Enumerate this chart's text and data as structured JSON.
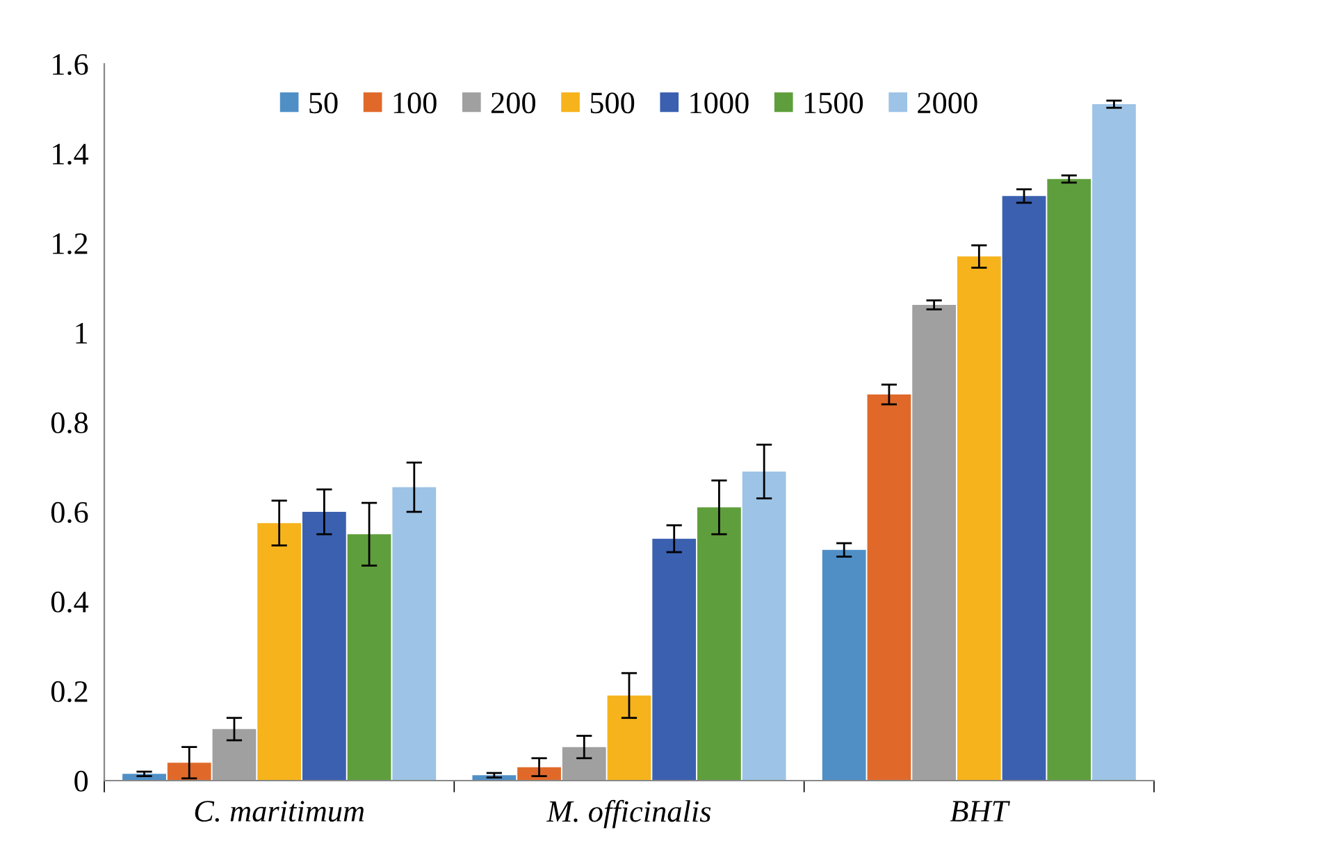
{
  "chart_data": {
    "type": "bar",
    "categories": [
      "C. maritimum",
      "M. officinalis",
      "BHT"
    ],
    "series": [
      {
        "name": "50",
        "color": "#4f8fc6",
        "values": [
          0.015,
          0.012,
          0.515
        ],
        "errors": [
          0.005,
          0.005,
          0.015
        ]
      },
      {
        "name": "100",
        "color": "#e0692a",
        "values": [
          0.04,
          0.03,
          0.862
        ],
        "errors": [
          0.035,
          0.02,
          0.022
        ]
      },
      {
        "name": "200",
        "color": "#a0a0a0",
        "values": [
          0.115,
          0.075,
          1.062
        ],
        "errors": [
          0.025,
          0.025,
          0.01
        ]
      },
      {
        "name": "500",
        "color": "#f6b31b",
        "values": [
          0.575,
          0.19,
          1.17
        ],
        "errors": [
          0.05,
          0.05,
          0.025
        ]
      },
      {
        "name": "1000",
        "color": "#3b60b0",
        "values": [
          0.6,
          0.54,
          1.305
        ],
        "errors": [
          0.05,
          0.03,
          0.015
        ]
      },
      {
        "name": "1500",
        "color": "#5f9e3c",
        "values": [
          0.55,
          0.61,
          1.343
        ],
        "errors": [
          0.07,
          0.06,
          0.008
        ]
      },
      {
        "name": "2000",
        "color": "#9dc3e6",
        "values": [
          0.655,
          0.69,
          1.51
        ],
        "errors": [
          0.055,
          0.06,
          0.008
        ]
      }
    ],
    "ylim": [
      0,
      1.6
    ],
    "yticks": [
      0,
      0.2,
      0.4,
      0.6,
      0.8,
      1,
      1.2,
      1.4,
      1.6
    ],
    "grid": false,
    "legend": "top"
  }
}
